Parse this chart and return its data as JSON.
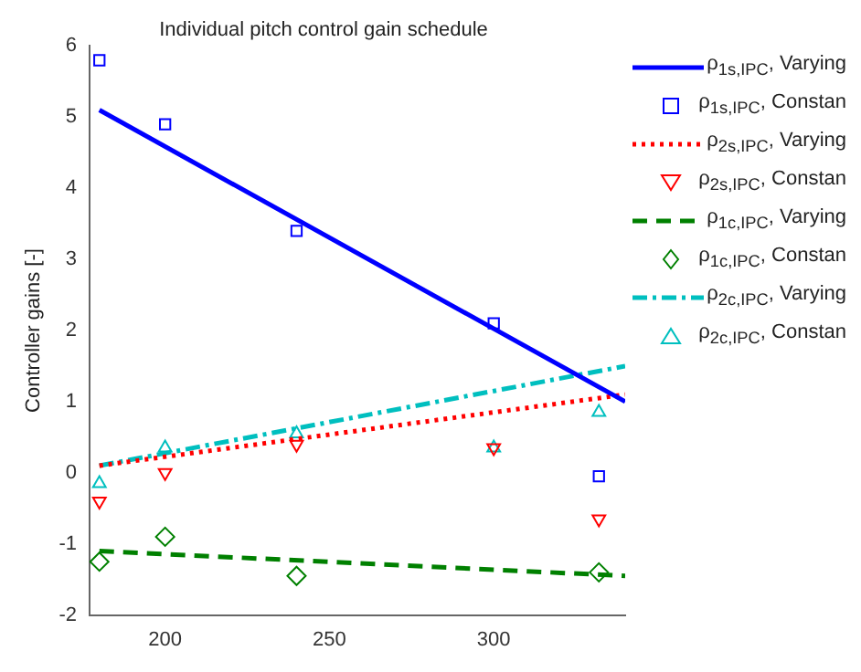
{
  "chart_data": {
    "type": "line",
    "title": "Individual pitch control gain schedule",
    "ylabel": "Controller gains [-]",
    "xlim": [
      177,
      340
    ],
    "xticks": [
      200,
      250,
      300
    ],
    "ylim": [
      -2,
      6
    ],
    "yticks": [
      -2,
      -1,
      0,
      1,
      2,
      3,
      4,
      5,
      6
    ],
    "grid": false,
    "legend": "right",
    "series": [
      {
        "name": "ρ$_{1s,IPC}$, Varying",
        "color": "#0000ff",
        "line_style": "solid",
        "marker": "none",
        "x": [
          180,
          340
        ],
        "values": [
          5.1,
          1.0
        ]
      },
      {
        "name": "ρ$_{1s,IPC}$, Constan",
        "type": "scatter",
        "color": "#0000ff",
        "marker": "square",
        "x": [
          180,
          200,
          240,
          300,
          332
        ],
        "values": [
          5.8,
          4.9,
          3.4,
          2.1,
          -0.05
        ]
      },
      {
        "name": "ρ$_{2s,IPC}$, Varying",
        "color": "#ff0000",
        "line_style": "dotted",
        "marker": "none",
        "x": [
          180,
          340
        ],
        "values": [
          0.1,
          1.1
        ]
      },
      {
        "name": "ρ$_{2s,IPC}$, Constan",
        "type": "scatter",
        "color": "#ff0000",
        "marker": "triangle-down",
        "x": [
          180,
          200,
          240,
          300,
          332
        ],
        "values": [
          -0.4,
          0.0,
          0.4,
          0.35,
          -0.65
        ]
      },
      {
        "name": "ρ$_{1c,IPC}$, Varying",
        "color": "#008000",
        "line_style": "dashed",
        "marker": "none",
        "x": [
          180,
          340
        ],
        "values": [
          -1.1,
          -1.45
        ]
      },
      {
        "name": "ρ$_{1c,IPC}$, Constan",
        "type": "scatter",
        "color": "#008000",
        "marker": "diamond",
        "x": [
          180,
          200,
          240,
          300,
          332
        ],
        "values": [
          -1.25,
          -0.9,
          -1.45,
          null,
          -1.4
        ]
      },
      {
        "name": "ρ$_{2c,IPC}$, Varying",
        "color": "#00bfbf",
        "line_style": "dashdot",
        "marker": "none",
        "x": [
          180,
          340
        ],
        "values": [
          0.1,
          1.5
        ]
      },
      {
        "name": "ρ$_{2c,IPC}$, Constan",
        "type": "scatter",
        "color": "#00bfbf",
        "marker": "triangle",
        "x": [
          180,
          200,
          240,
          300,
          332
        ],
        "values": [
          -0.15,
          0.35,
          0.55,
          0.35,
          0.85
        ]
      }
    ]
  }
}
